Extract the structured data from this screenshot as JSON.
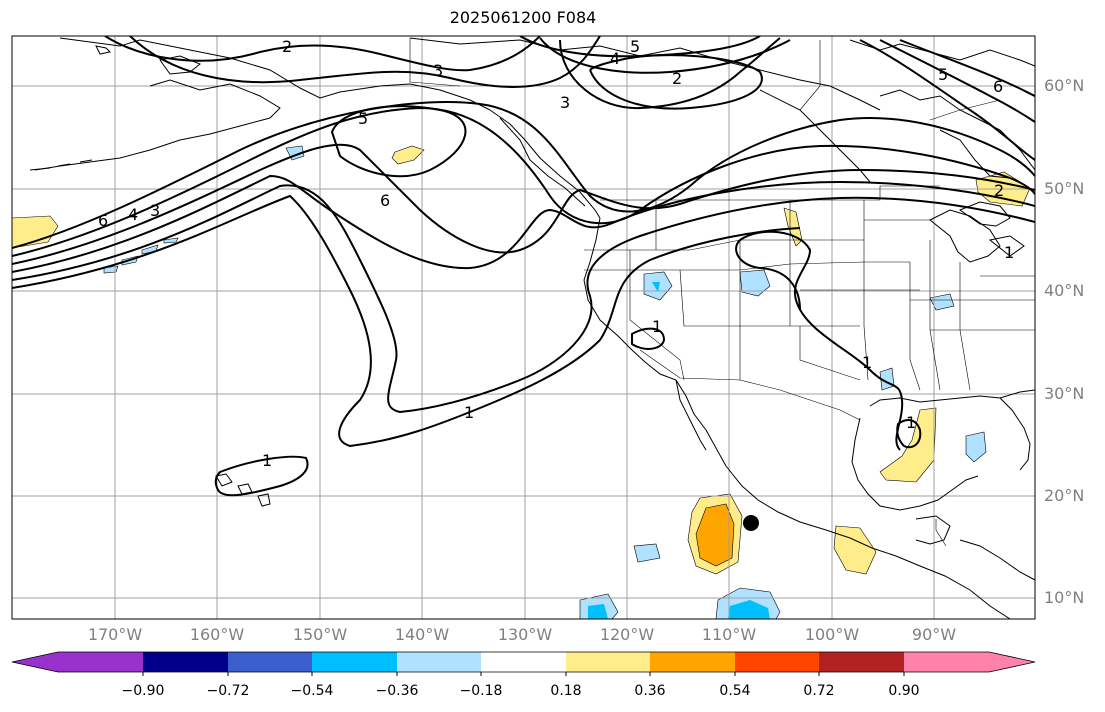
{
  "title": "2025061200 F084",
  "map": {
    "longitude_labels": [
      "170°W",
      "160°W",
      "150°W",
      "140°W",
      "130°W",
      "120°W",
      "110°W",
      "100°W",
      "90°W"
    ],
    "latitude_labels": [
      "60°N",
      "50°N",
      "40°N",
      "30°N",
      "20°N",
      "10°N"
    ],
    "contour_labels": [
      "2",
      "3",
      "5",
      "4",
      "5",
      "2",
      "3",
      "5",
      "6",
      "6",
      "4",
      "3",
      "6",
      "1",
      "1",
      "1",
      "1",
      "1",
      "2",
      "1"
    ],
    "marker": "storm-position-dot"
  },
  "colorbar": {
    "tick_labels": [
      "−0.90",
      "−0.72",
      "−0.54",
      "−0.36",
      "−0.18",
      "0.18",
      "0.36",
      "0.54",
      "0.72",
      "0.90"
    ],
    "colors": [
      "#9932CC",
      "#00008B",
      "#3A5FCD",
      "#00BFFF",
      "#B0E2FF",
      "#FFFFFF",
      "#FFEC8B",
      "#FFA500",
      "#FF4500",
      "#B22222",
      "#FF82AB"
    ]
  }
}
